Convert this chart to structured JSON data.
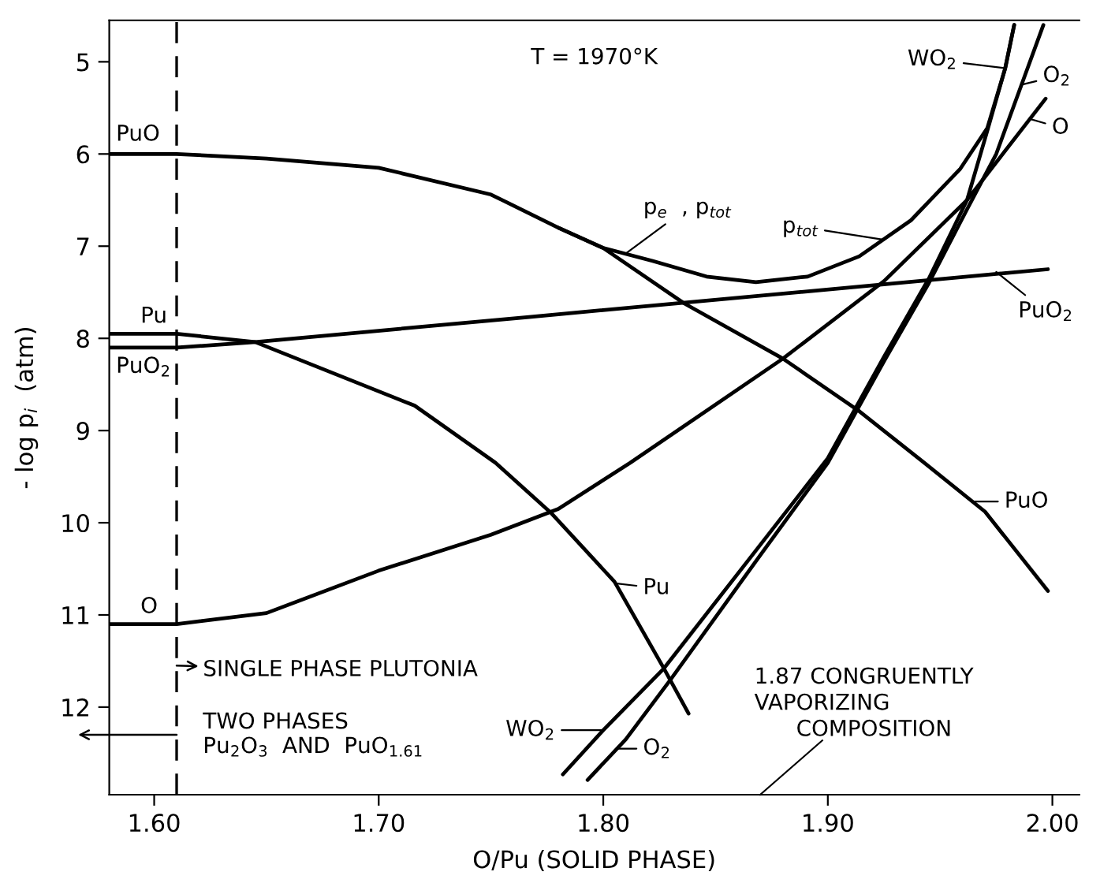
{
  "chart_data": {
    "type": "line",
    "xlabel": "O/Pu (SOLID PHASE)",
    "ylabel": "- log p$_{i}$  (atm)",
    "xlim": [
      1.58,
      2.012
    ],
    "ylim": [
      12.95,
      4.55
    ],
    "xticks": [
      {
        "value": 1.6,
        "label": "1.60"
      },
      {
        "value": 1.7,
        "label": "1.70"
      },
      {
        "value": 1.8,
        "label": "1.80"
      },
      {
        "value": 1.9,
        "label": "1.90"
      },
      {
        "value": 2.0,
        "label": "2.00"
      }
    ],
    "yticks": [
      5,
      6,
      7,
      8,
      9,
      10,
      11,
      12
    ],
    "grid": false,
    "legend": false,
    "marker": "none",
    "line_style": "solid",
    "series": [
      {
        "color": "#000000",
        "x": [
          1.58,
          1.61,
          1.65,
          1.7,
          1.75,
          1.78,
          1.8,
          1.836,
          1.88,
          1.914,
          1.943,
          1.97,
          1.998
        ],
        "values": [
          6.0,
          6.0,
          6.05,
          6.15,
          6.44,
          6.8,
          7.02,
          7.62,
          8.22,
          8.79,
          9.35,
          9.88,
          10.74
        ]
      },
      {
        "color": "#000000",
        "x": [
          1.58,
          1.61,
          1.645,
          1.716,
          1.752,
          1.777,
          1.805,
          1.827,
          1.838
        ],
        "values": [
          7.95,
          7.95,
          8.04,
          8.73,
          9.35,
          9.9,
          10.64,
          11.58,
          12.07
        ]
      },
      {
        "color": "#000000",
        "x": [
          1.58,
          1.61,
          1.645,
          1.766,
          1.998
        ],
        "values": [
          8.1,
          8.1,
          8.04,
          7.77,
          7.25
        ]
      },
      {
        "color": "#000000",
        "x": [
          1.58,
          1.61,
          1.65,
          1.7,
          1.75,
          1.78,
          1.812,
          1.88,
          1.925,
          1.962,
          1.997
        ],
        "values": [
          11.1,
          11.1,
          10.98,
          10.52,
          10.13,
          9.85,
          9.35,
          8.22,
          7.38,
          6.5,
          5.4
        ]
      },
      {
        "color": "#000000",
        "x": [
          1.78,
          1.8,
          1.822,
          1.846,
          1.868,
          1.891,
          1.914,
          1.937,
          1.959,
          1.971,
          1.979,
          1.983
        ],
        "values": [
          6.8,
          7.02,
          7.16,
          7.33,
          7.39,
          7.33,
          7.11,
          6.72,
          6.16,
          5.72,
          5.07,
          4.6
        ]
      },
      {
        "color": "#000000",
        "x": [
          1.782,
          1.8,
          1.827,
          1.868,
          1.9,
          1.925,
          1.945,
          1.962,
          1.971,
          1.979,
          1.983
        ],
        "values": [
          12.73,
          12.25,
          11.58,
          10.3,
          9.3,
          8.2,
          7.35,
          6.5,
          5.75,
          5.07,
          4.6
        ]
      },
      {
        "color": "#000000",
        "x": [
          1.793,
          1.81,
          1.83,
          1.87,
          1.9,
          1.925,
          1.945,
          1.962,
          1.975,
          1.987,
          1.996
        ],
        "values": [
          12.79,
          12.35,
          11.7,
          10.35,
          9.35,
          8.25,
          7.4,
          6.6,
          6.0,
          5.2,
          4.6
        ]
      }
    ],
    "ref_lines": [
      {
        "axis": "x",
        "value": 1.61,
        "line_style": "dashed",
        "color": "#000000"
      }
    ],
    "annotations": [
      "T = 1970°K",
      {
        "text": "SINGLE PHASE PLUTONIA",
        "x": 1.61,
        "y": 11.55
      },
      {
        "text": "TWO PHASES\nPu$_{2}$O$_{3}$  AND  PuO$_{1.61}$",
        "x": 1.61,
        "y": 12.3
      },
      "1.87 CONGRUENTLY\nVAPORIZING\n      COMPOSITION",
      {
        "text": "PuO",
        "x": 1.583,
        "y": 6.0
      },
      {
        "text": "Pu",
        "x": 1.59,
        "y": 7.95
      },
      {
        "text": "PuO$_{2}$",
        "x": 1.583,
        "y": 8.1
      },
      {
        "text": "O",
        "x": 1.59,
        "y": 11.1
      },
      {
        "text": "p$_{e}$  , p$_{tot}$",
        "x": 1.81,
        "y": 7.08
      },
      {
        "text": "p$_{tot}$",
        "x": 1.925,
        "y": 6.93
      },
      {
        "text": "WO$_{2}$",
        "x": 1.979,
        "y": 5.07
      },
      {
        "text": "O$_{2}$",
        "x": 1.986,
        "y": 5.25
      },
      {
        "text": "O",
        "x": 1.99,
        "y": 5.62
      },
      {
        "text": "PuO$_{2}$",
        "x": 1.975,
        "y": 7.28
      },
      {
        "text": "PuO",
        "x": 1.965,
        "y": 9.77
      },
      {
        "text": "Pu",
        "x": 1.806,
        "y": 10.66
      },
      {
        "text": "WO$_{2}$",
        "x": 1.8,
        "y": 12.25
      },
      {
        "text": "O$_{2}$",
        "x": 1.806,
        "y": 12.45
      }
    ]
  }
}
